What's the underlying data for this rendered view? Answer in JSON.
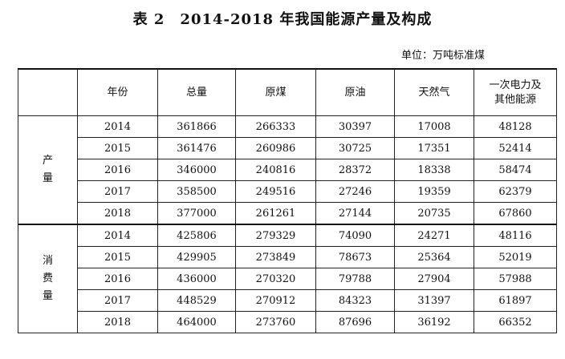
{
  "title": "表 2　2014-2018 年我国能源产量及构成",
  "unit": "单位：万吨标准煤",
  "columns": [
    "",
    "年份",
    "总量",
    "原煤",
    "原油",
    "天然气",
    "一次电力及\n其他能源"
  ],
  "groups": [
    {
      "label": "产\n量",
      "rows": [
        [
          "2014",
          "361866",
          "266333",
          "30397",
          "17008",
          "48128"
        ],
        [
          "2015",
          "361476",
          "260986",
          "30725",
          "17351",
          "52414"
        ],
        [
          "2016",
          "346000",
          "240816",
          "28372",
          "18338",
          "58474"
        ],
        [
          "2017",
          "358500",
          "249516",
          "27246",
          "19359",
          "62379"
        ],
        [
          "2018",
          "377000",
          "261261",
          "27144",
          "20735",
          "67860"
        ]
      ]
    },
    {
      "label": "消\n费\n量",
      "rows": [
        [
          "2014",
          "425806",
          "279329",
          "74090",
          "24271",
          "48116"
        ],
        [
          "2015",
          "429905",
          "273849",
          "78673",
          "25364",
          "52019"
        ],
        [
          "2016",
          "436000",
          "270320",
          "79788",
          "27904",
          "57988"
        ],
        [
          "2017",
          "448529",
          "270912",
          "84323",
          "31397",
          "61897"
        ],
        [
          "2018",
          "464000",
          "273760",
          "87696",
          "36192",
          "66352"
        ]
      ]
    }
  ]
}
